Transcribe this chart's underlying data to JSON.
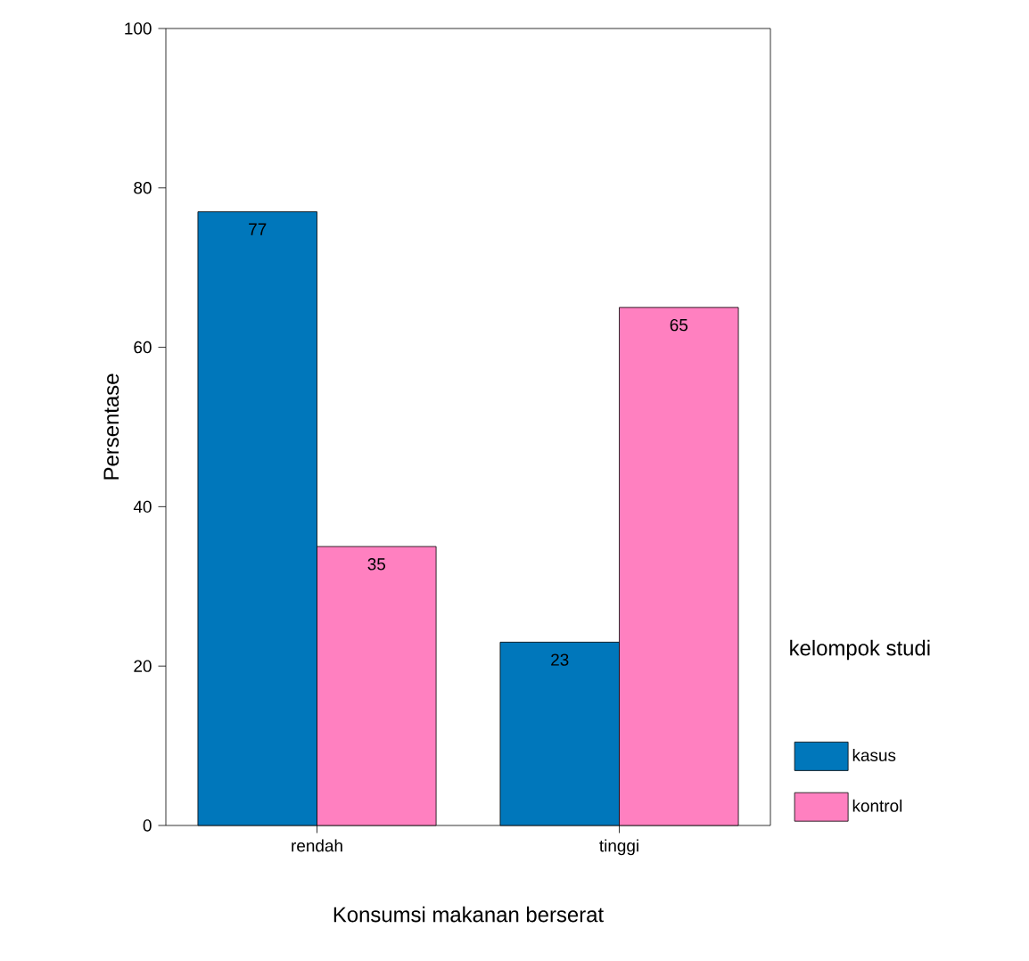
{
  "chart_data": {
    "type": "bar",
    "xlabel": "Konsumsi makanan berserat",
    "ylabel": "Persentase",
    "legend_title": "kelompok studi",
    "categories": [
      "rendah",
      "tinggi"
    ],
    "series": [
      {
        "name": "kasus",
        "color": "#0077bb",
        "values": [
          77,
          23
        ]
      },
      {
        "name": "kontrol",
        "color": "#ff80c0",
        "values": [
          35,
          65
        ]
      }
    ],
    "ylim": [
      0,
      100
    ],
    "yticks": [
      0,
      20,
      40,
      60,
      80,
      100
    ],
    "data_labels": true,
    "legend": "right",
    "grid": false
  }
}
